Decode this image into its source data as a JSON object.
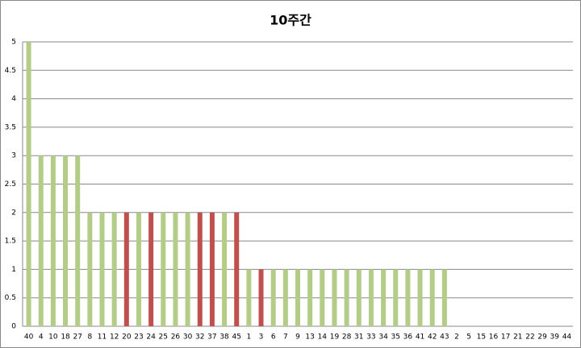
{
  "chart_data": {
    "type": "bar",
    "title": "10주간",
    "categories": [
      "40",
      "4",
      "10",
      "18",
      "27",
      "8",
      "11",
      "12",
      "20",
      "23",
      "24",
      "25",
      "26",
      "30",
      "32",
      "37",
      "38",
      "45",
      "1",
      "3",
      "6",
      "7",
      "9",
      "13",
      "14",
      "19",
      "28",
      "31",
      "33",
      "34",
      "35",
      "36",
      "41",
      "42",
      "43",
      "2",
      "5",
      "15",
      "16",
      "17",
      "21",
      "22",
      "29",
      "39",
      "44"
    ],
    "values": [
      5,
      3,
      3,
      3,
      3,
      2,
      2,
      2,
      2,
      2,
      2,
      2,
      2,
      2,
      2,
      2,
      2,
      2,
      1,
      1,
      1,
      1,
      1,
      1,
      1,
      1,
      1,
      1,
      1,
      1,
      1,
      1,
      1,
      1,
      1,
      0,
      0,
      0,
      0,
      0,
      0,
      0,
      0,
      0,
      0
    ],
    "colors": [
      "#b3cd88",
      "#b3cd88",
      "#b3cd88",
      "#b3cd88",
      "#b3cd88",
      "#b3cd88",
      "#b3cd88",
      "#b3cd88",
      "#c0504d",
      "#b3cd88",
      "#c0504d",
      "#b3cd88",
      "#b3cd88",
      "#b3cd88",
      "#c0504d",
      "#c0504d",
      "#b3cd88",
      "#c0504d",
      "#b3cd88",
      "#c0504d",
      "#b3cd88",
      "#b3cd88",
      "#b3cd88",
      "#b3cd88",
      "#b3cd88",
      "#b3cd88",
      "#b3cd88",
      "#b3cd88",
      "#b3cd88",
      "#b3cd88",
      "#b3cd88",
      "#b3cd88",
      "#b3cd88",
      "#b3cd88",
      "#b3cd88",
      "#b3cd88",
      "#b3cd88",
      "#b3cd88",
      "#b3cd88",
      "#b3cd88",
      "#b3cd88",
      "#b3cd88",
      "#b3cd88",
      "#b3cd88",
      "#b3cd88"
    ],
    "ylim": [
      0,
      5
    ],
    "yticks": [
      0,
      0.5,
      1,
      1.5,
      2,
      2.5,
      3,
      3.5,
      4,
      4.5,
      5
    ],
    "grid": true
  }
}
